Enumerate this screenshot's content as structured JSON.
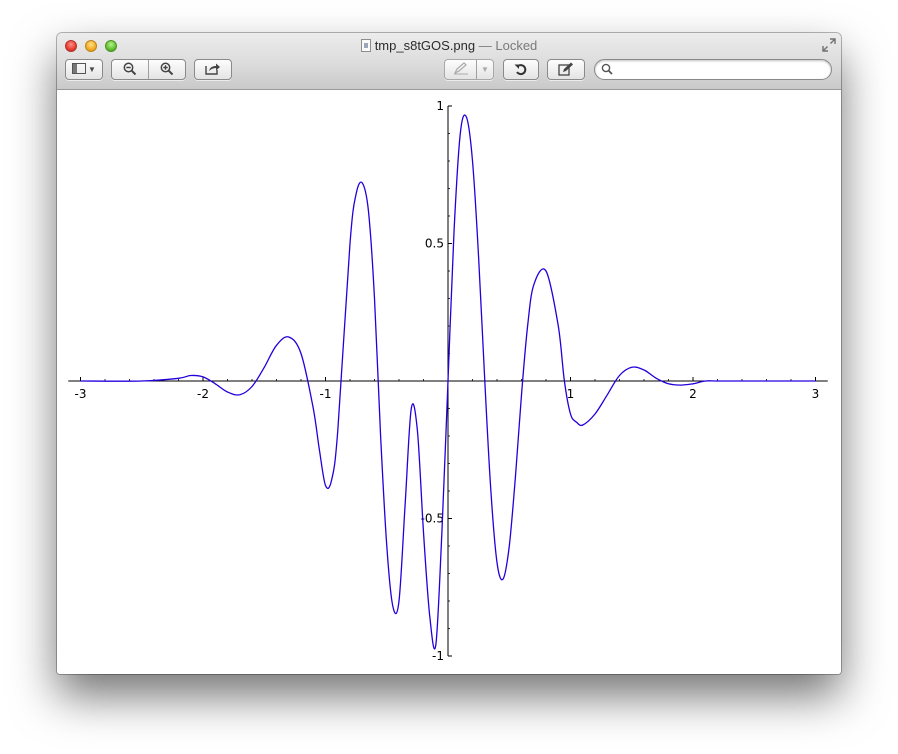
{
  "window": {
    "filename": "tmp_s8tGOS.png",
    "status": " — Locked"
  },
  "toolbar": {
    "sidebar_icon": "sidebar-icon",
    "zoom_out_icon": "zoom-out-icon",
    "zoom_in_icon": "zoom-in-icon",
    "share_icon": "share-icon",
    "markup_icon": "pen-icon",
    "rotate_icon": "rotate-icon",
    "edit_icon": "edit-pencil-icon"
  },
  "search": {
    "value": "",
    "placeholder": ""
  },
  "colors": {
    "curve": "#2200dd",
    "axis": "#000000"
  },
  "chart_data": {
    "type": "line",
    "title": "",
    "xlabel": "",
    "ylabel": "",
    "xlim": [
      -3.1,
      3.1
    ],
    "ylim": [
      -1.0,
      1.0
    ],
    "x_ticks": [
      -3,
      -2,
      -1,
      1,
      2,
      3
    ],
    "x_tick_labels": [
      "-3",
      "-2",
      "-1",
      "1",
      "2",
      "3"
    ],
    "y_ticks": [
      -1,
      -0.5,
      0.5,
      1
    ],
    "y_tick_labels": [
      "-1",
      "-0.5",
      "0.5",
      "1"
    ],
    "grid": false,
    "legend": "none",
    "series": [
      {
        "x": [
          -3.0,
          -2.5,
          -2.2,
          -2.1,
          -2.0,
          -1.9,
          -1.8,
          -1.7,
          -1.6,
          -1.5,
          -1.4,
          -1.3,
          -1.2,
          -1.1,
          -1.05,
          -1.0,
          -0.95,
          -0.9,
          -0.8,
          -0.75,
          -0.7,
          -0.65,
          -0.6,
          -0.55,
          -0.5,
          -0.45,
          -0.4,
          -0.35,
          -0.3,
          -0.25,
          -0.2,
          -0.15,
          -0.1,
          -0.05,
          0.0,
          0.05,
          0.1,
          0.15,
          0.2,
          0.25,
          0.3,
          0.35,
          0.4,
          0.45,
          0.5,
          0.55,
          0.6,
          0.65,
          0.7,
          0.8,
          0.9,
          0.95,
          1.0,
          1.05,
          1.1,
          1.2,
          1.3,
          1.4,
          1.5,
          1.6,
          1.7,
          1.8,
          1.9,
          2.0,
          2.1,
          2.2,
          2.4,
          2.6,
          3.0
        ],
        "y": [
          0.0,
          0.0,
          0.01,
          0.02,
          0.015,
          -0.01,
          -0.04,
          -0.05,
          -0.02,
          0.05,
          0.13,
          0.16,
          0.1,
          -0.1,
          -0.25,
          -0.38,
          -0.36,
          -0.18,
          0.5,
          0.68,
          0.72,
          0.62,
          0.3,
          -0.2,
          -0.6,
          -0.82,
          -0.8,
          -0.45,
          -0.1,
          -0.18,
          -0.55,
          -0.85,
          -0.96,
          -0.55,
          0.0,
          0.55,
          0.9,
          0.96,
          0.8,
          0.45,
          0.0,
          -0.4,
          -0.66,
          -0.72,
          -0.6,
          -0.35,
          -0.05,
          0.2,
          0.35,
          0.4,
          0.2,
          0.0,
          -0.12,
          -0.15,
          -0.16,
          -0.12,
          -0.05,
          0.02,
          0.05,
          0.04,
          0.01,
          -0.01,
          -0.015,
          -0.01,
          0.0,
          0.0,
          0.0,
          0.0,
          0.0
        ]
      }
    ]
  }
}
